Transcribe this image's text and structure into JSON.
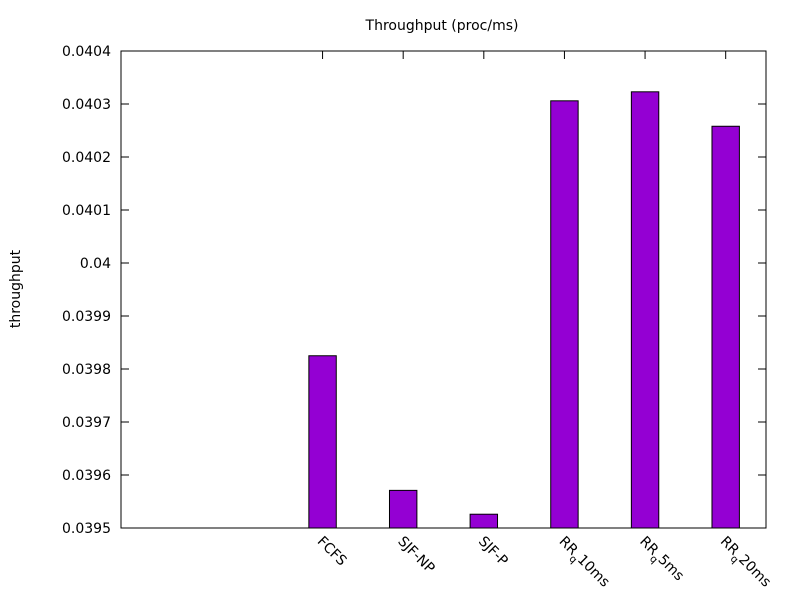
{
  "chart_data": {
    "type": "bar",
    "title": "Throughput (proc/ms)",
    "xlabel": "",
    "ylabel": "throughput",
    "categories": [
      "FCFS",
      "SJF-NP",
      "SJF-P",
      "RRq10ms",
      "RRq5ms",
      "RRq20ms"
    ],
    "tick_text": [
      {
        "base": "FCFS",
        "sub": ""
      },
      {
        "base": "SJF-NP",
        "sub": ""
      },
      {
        "base": "SJF-P",
        "sub": ""
      },
      {
        "base": "RR",
        "sub": "q",
        "rest": "10ms"
      },
      {
        "base": "RR",
        "sub": "q",
        "rest": "5ms"
      },
      {
        "base": "RR",
        "sub": "q",
        "rest": "20ms"
      }
    ],
    "values": [
      0.039825,
      0.039571,
      0.039526,
      0.040306,
      0.040323,
      0.040258
    ],
    "ylim": [
      0.0395,
      0.0404
    ],
    "yticks": [
      "0.0395",
      "0.0396",
      "0.0397",
      "0.0398",
      "0.0399",
      "0.04",
      "0.0401",
      "0.0402",
      "0.0403",
      "0.0404"
    ],
    "bar_color": "#9400d3",
    "grid": false,
    "legend": "none"
  }
}
